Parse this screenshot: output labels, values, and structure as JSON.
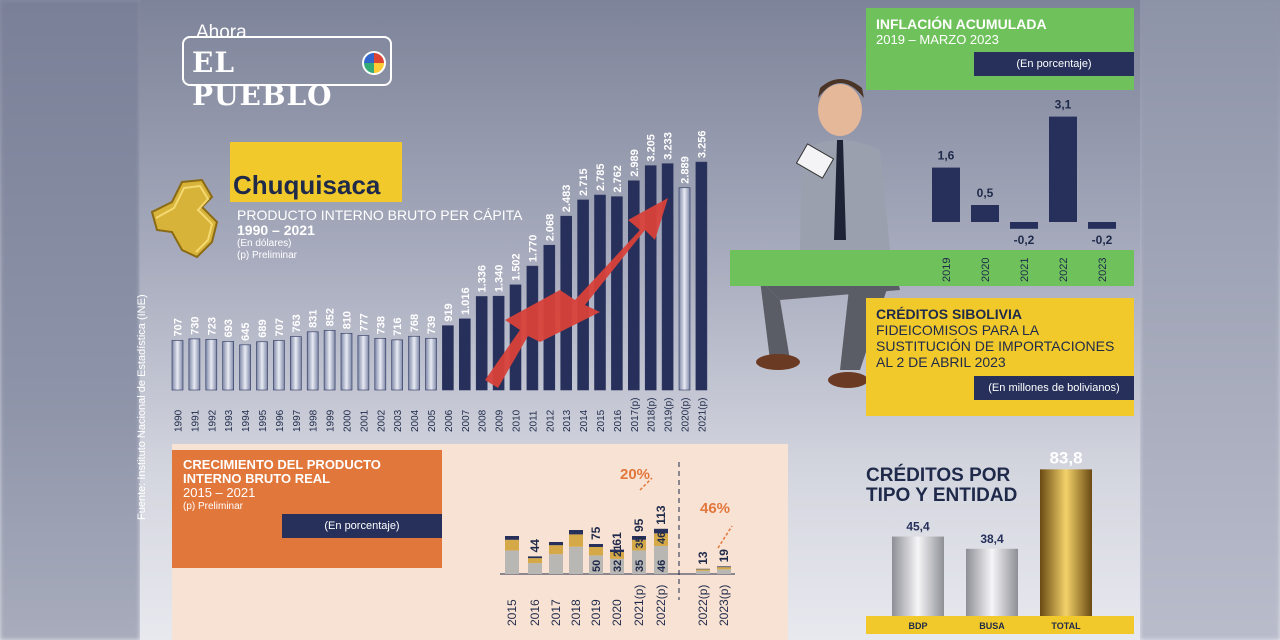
{
  "logo": {
    "pre": "Ahora",
    "name": "EL PUEBLO"
  },
  "source": "Fuente: Instituto Nacional de Estadística (INE)",
  "gdp": {
    "department": "Chuquisaca",
    "title": "PRODUCTO INTERNO BRUTO PER CÁPITA",
    "period": "1990 – 2021",
    "unit": "(En dólares)",
    "note": "(p) Preliminar"
  },
  "inflation": {
    "title": "INFLACIÓN ACUMULADA",
    "period": "2019 – MARZO 2023",
    "unit": "(En porcentaje)"
  },
  "credits": {
    "title": "CRÉDITOS SIBOLIVIA",
    "subtitle_1": "FIDEICOMISOS PARA LA",
    "subtitle_2": "SUSTITUCIÓN DE IMPORTACIONES",
    "subtitle_3": "AL 2 DE ABRIL 2023",
    "unit": "(En millones de bolivianos)",
    "type_title_1": "CRÉDITOS POR",
    "type_title_2": "TIPO Y ENTIDAD"
  },
  "growth": {
    "title_1": "CRECIMIENTO DEL PRODUCTO",
    "title_2": "INTERNO BRUTO REAL",
    "period": "2015 – 2021",
    "note": "(p) Preliminar",
    "unit": "(En porcentaje)"
  },
  "colors": {
    "navy": "#26305a",
    "yellow": "#f2c92b",
    "green": "#6fc25b",
    "orange": "#e2773c",
    "red": "#d9413a"
  },
  "chart_data": [
    {
      "type": "bar",
      "categories": [
        "1990",
        "1991",
        "1992",
        "1993",
        "1994",
        "1995",
        "1996",
        "1997",
        "1998",
        "1999",
        "2000",
        "2001",
        "2002",
        "2003",
        "2004",
        "2005",
        "2006",
        "2007",
        "2008",
        "2009",
        "2010",
        "2011",
        "2012",
        "2013",
        "2014",
        "2015",
        "2016",
        "2017(p)",
        "2018(p)",
        "2019(p)",
        "2020(p)",
        "2021(p)"
      ],
      "values": [
        707,
        730,
        723,
        693,
        645,
        689,
        707,
        763,
        831,
        852,
        810,
        777,
        738,
        716,
        768,
        739,
        919,
        1016,
        1336,
        1340,
        1502,
        1770,
        2068,
        2483,
        2715,
        2785,
        2762,
        2989,
        3205,
        3233,
        2889,
        3256
      ],
      "labels": [
        "707",
        "730",
        "723",
        "693",
        "645",
        "689",
        "707",
        "763",
        "831",
        "852",
        "810",
        "777",
        "738",
        "716",
        "768",
        "739",
        "919",
        "1.016",
        "1.336",
        "1.340",
        "1.502",
        "1.770",
        "2.068",
        "2.483",
        "2.715",
        "2.785",
        "2.762",
        "2.989",
        "3.205",
        "3.233",
        "2.889",
        "3.256"
      ],
      "title": "PRODUCTO INTERNO BRUTO PER CÁPITA"
    },
    {
      "type": "bar",
      "categories": [
        "2019",
        "2020",
        "2021",
        "2022",
        "2023"
      ],
      "values": [
        1.6,
        0.5,
        -0.2,
        3.1,
        -0.2
      ],
      "labels": [
        "1,6",
        "0,5",
        "-0,2",
        "3,1",
        "-0,2"
      ],
      "title": "INFLACIÓN ACUMULADA"
    },
    {
      "type": "bar",
      "categories": [
        "BDP",
        "BUSA",
        "TOTAL"
      ],
      "values": [
        45.4,
        38.4,
        83.8
      ],
      "labels": [
        "45,4",
        "38,4",
        "83,8"
      ],
      "title": "CRÉDITOS POR TIPO Y ENTIDAD"
    },
    {
      "type": "bar",
      "stacked": true,
      "categories": [
        "2015",
        "2016",
        "2017",
        "2018",
        "2019",
        "2020",
        "2021(p)",
        "2022(p)",
        "2022(p)",
        "2023(p)"
      ],
      "totals": [
        null,
        44,
        null,
        null,
        75,
        61,
        95,
        113,
        13,
        19
      ],
      "segments": [
        [
          null,
          null,
          null
        ],
        [
          null,
          null,
          null
        ],
        [
          null,
          null,
          null
        ],
        [
          null,
          null,
          null
        ],
        [
          50,
          null,
          null
        ],
        [
          32,
          21,
          null
        ],
        [
          35,
          35,
          null
        ],
        [
          46,
          46,
          null
        ],
        [
          null,
          null,
          null
        ],
        [
          null,
          null,
          null
        ]
      ],
      "annotations": [
        "20%",
        "46%"
      ],
      "title": "CRECIMIENTO DEL PRODUCTO INTERNO BRUTO REAL"
    }
  ]
}
